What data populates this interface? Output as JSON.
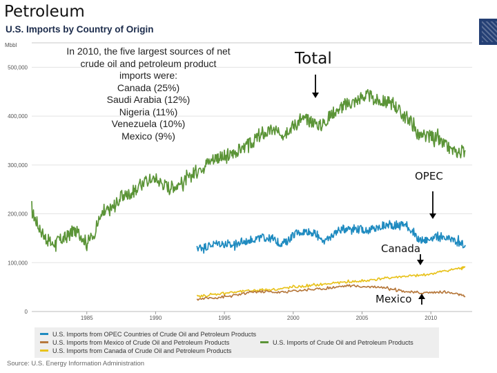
{
  "page": {
    "title": "Petroleum",
    "note_lines": [
      "In 2010, the five largest sources of net",
      "crude oil and petroleum product",
      "imports were:",
      "Canada (25%)",
      "Saudi Arabia (12%)",
      "Nigeria (11%)",
      "Venezuela (10%)",
      "Mexico (9%)"
    ],
    "annotations": {
      "total": "Total",
      "opec": "OPEC",
      "canada": "Canada",
      "mexico": "Mexico"
    },
    "source": "Source: U.S. Energy Information Administration"
  },
  "chart_data": {
    "type": "line",
    "title": "U.S. Imports by Country of Origin",
    "ylabel": "Mbbl",
    "xlabel": "",
    "x_range": [
      1981,
      2013
    ],
    "ylim": [
      0,
      550000
    ],
    "y_ticks": [
      0,
      100000,
      200000,
      300000,
      400000,
      500000
    ],
    "y_tick_labels": [
      "0",
      "100,000",
      "200,000",
      "300,000",
      "400,000",
      "500,000"
    ],
    "x_ticks": [
      1985,
      1990,
      1995,
      2000,
      2005,
      2010
    ],
    "x_tick_labels": [
      "1985",
      "1990",
      "1995",
      "2000",
      "2005",
      "2010"
    ],
    "grid": true,
    "legend_position": "bottom",
    "series": [
      {
        "name": "U.S. Imports of Crude Oil and Petroleum Products",
        "color": "#5b9437",
        "x": [
          1981.0,
          1981.5,
          1982.0,
          1982.5,
          1983.0,
          1983.5,
          1984.0,
          1984.5,
          1985.0,
          1985.5,
          1986.0,
          1986.5,
          1987.0,
          1987.5,
          1988.0,
          1988.5,
          1989.0,
          1989.5,
          1990.0,
          1990.5,
          1991.0,
          1991.5,
          1992.0,
          1992.5,
          1993.0,
          1993.5,
          1994.0,
          1994.5,
          1995.0,
          1995.5,
          1996.0,
          1996.5,
          1997.0,
          1997.5,
          1998.0,
          1998.5,
          1999.0,
          1999.5,
          2000.0,
          2000.5,
          2001.0,
          2001.5,
          2002.0,
          2002.5,
          2003.0,
          2003.5,
          2004.0,
          2004.5,
          2005.0,
          2005.5,
          2006.0,
          2006.5,
          2007.0,
          2007.5,
          2008.0,
          2008.5,
          2009.0,
          2009.5,
          2010.0,
          2010.5,
          2011.0,
          2011.5,
          2012.0,
          2012.5
        ],
        "values": [
          205000,
          175000,
          150000,
          138000,
          145000,
          152000,
          165000,
          160000,
          140000,
          158000,
          195000,
          205000,
          215000,
          235000,
          240000,
          248000,
          262000,
          270000,
          272000,
          262000,
          255000,
          258000,
          265000,
          275000,
          290000,
          300000,
          310000,
          318000,
          312000,
          322000,
          330000,
          338000,
          345000,
          358000,
          365000,
          372000,
          362000,
          372000,
          380000,
          392000,
          392000,
          388000,
          380000,
          395000,
          410000,
          418000,
          425000,
          430000,
          440000,
          442000,
          432000,
          430000,
          428000,
          420000,
          400000,
          392000,
          365000,
          355000,
          360000,
          352000,
          340000,
          330000,
          325000,
          330000
        ]
      },
      {
        "name": "U.S. Imports from OPEC Countries of Crude Oil and Petroleum Products",
        "color": "#1f8bc0",
        "x": [
          1993.0,
          1993.5,
          1994.0,
          1994.5,
          1995.0,
          1995.5,
          1996.0,
          1996.5,
          1997.0,
          1997.5,
          1998.0,
          1998.5,
          1999.0,
          1999.5,
          2000.0,
          2000.5,
          2001.0,
          2001.5,
          2002.0,
          2002.5,
          2003.0,
          2003.5,
          2004.0,
          2004.5,
          2005.0,
          2005.5,
          2006.0,
          2006.5,
          2007.0,
          2007.5,
          2008.0,
          2008.5,
          2009.0,
          2009.5,
          2010.0,
          2010.5,
          2011.0,
          2011.5,
          2012.0,
          2012.5
        ],
        "values": [
          130000,
          132000,
          136000,
          140000,
          138000,
          135000,
          140000,
          143000,
          148000,
          150000,
          152000,
          148000,
          140000,
          142000,
          158000,
          162000,
          165000,
          160000,
          148000,
          145000,
          162000,
          168000,
          172000,
          170000,
          168000,
          166000,
          170000,
          174000,
          178000,
          175000,
          180000,
          170000,
          148000,
          145000,
          150000,
          152000,
          147000,
          148000,
          140000,
          136000
        ]
      },
      {
        "name": "U.S. Imports from Canada of Crude Oil and Petroleum Products",
        "color": "#e8c21c",
        "x": [
          1993.0,
          1994.0,
          1995.0,
          1996.0,
          1997.0,
          1998.0,
          1999.0,
          2000.0,
          2001.0,
          2002.0,
          2003.0,
          2004.0,
          2005.0,
          2006.0,
          2007.0,
          2008.0,
          2009.0,
          2010.0,
          2011.0,
          2012.0,
          2012.5
        ],
        "values": [
          30000,
          34000,
          38000,
          40000,
          43000,
          45000,
          46000,
          50000,
          52000,
          55000,
          58000,
          61000,
          62000,
          66000,
          69000,
          72000,
          73000,
          77000,
          83000,
          88000,
          92000
        ]
      },
      {
        "name": "U.S. Imports from Mexico of Crude Oil and Petroleum Products",
        "color": "#b6783c",
        "x": [
          1993.0,
          1994.0,
          1995.0,
          1996.0,
          1997.0,
          1998.0,
          1999.0,
          2000.0,
          2001.0,
          2002.0,
          2003.0,
          2004.0,
          2005.0,
          2006.0,
          2007.0,
          2008.0,
          2009.0,
          2010.0,
          2011.0,
          2012.0,
          2012.5
        ],
        "values": [
          25000,
          28000,
          30000,
          34000,
          40000,
          41000,
          39000,
          42000,
          45000,
          46000,
          50000,
          53000,
          51000,
          51000,
          48000,
          42000,
          38000,
          39000,
          40000,
          35000,
          30000
        ]
      }
    ]
  }
}
